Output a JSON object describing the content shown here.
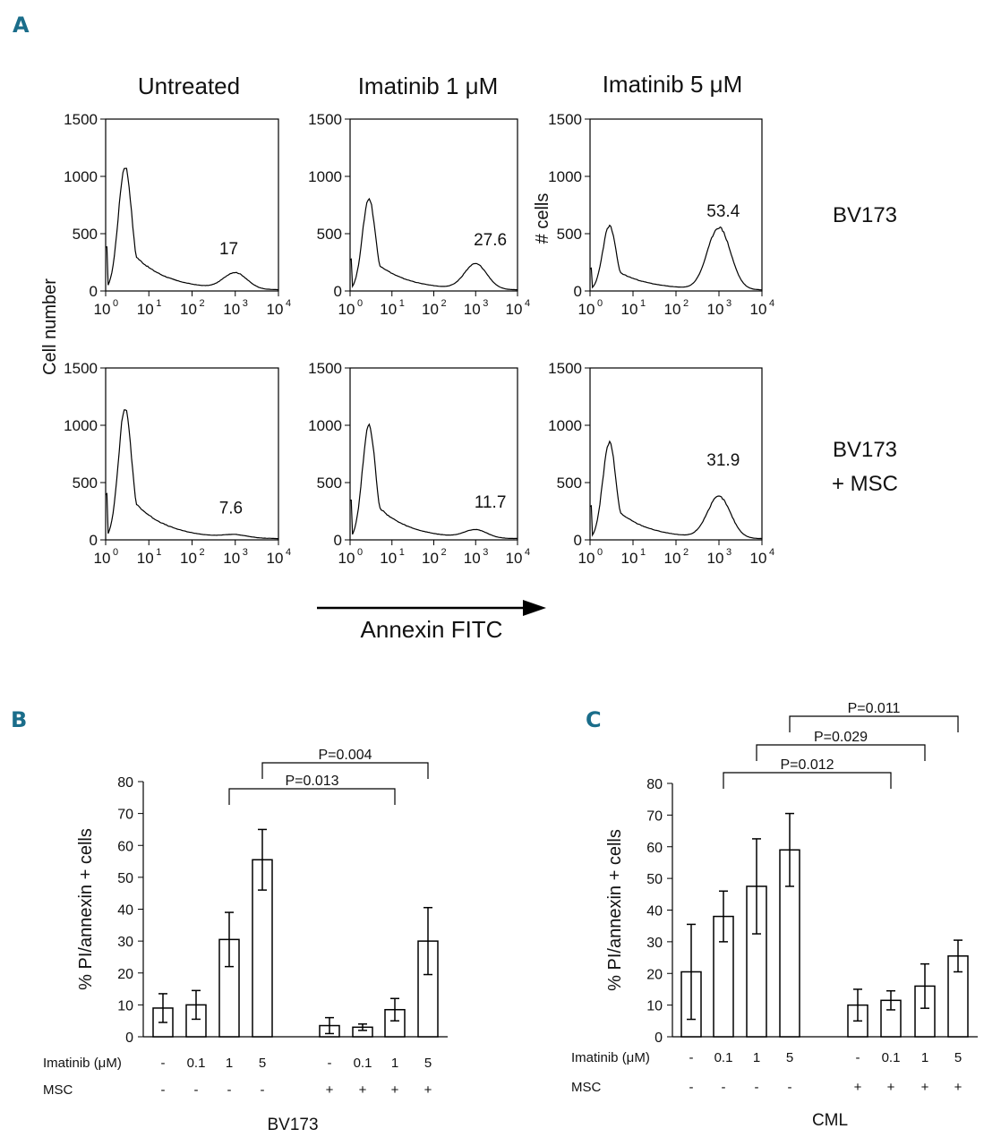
{
  "panel_labels": {
    "a": "A",
    "b": "B",
    "c": "C"
  },
  "flow": {
    "columns": [
      "Untreated",
      "Imatinib 1 μM",
      "Imatinib 5 μM"
    ],
    "rows": [
      "BV173",
      "BV173\n+ MSC"
    ],
    "row_label_lines": [
      [
        "BV173"
      ],
      [
        "BV173",
        "+ MSC"
      ]
    ],
    "y_label": "Cell number",
    "y_label_alt": "# cells",
    "x_label": "Annexin FITC",
    "y_ticks": [
      "0",
      "500",
      "1000",
      "1500"
    ],
    "x_ticks": [
      "10",
      "10",
      "10",
      "10",
      "10"
    ],
    "x_tick_exponents": [
      "0",
      "1",
      "2",
      "3",
      "4"
    ],
    "percentages": [
      [
        "17",
        "27.6",
        "53.4"
      ],
      [
        "7.6",
        "11.7",
        "31.9"
      ]
    ]
  },
  "chart_data": [
    {
      "type": "bar",
      "title": "BV173",
      "xlabel": "BV173",
      "ylabel": "% PI/annexin + cells",
      "ylim": [
        0,
        80
      ],
      "y_ticks": [
        "0",
        "10",
        "20",
        "30",
        "40",
        "50",
        "60",
        "70",
        "80"
      ],
      "condition_labels": {
        "imatinib": "Imatinib (μM)",
        "msc": "MSC"
      },
      "categories": [
        "-",
        "0.1",
        "1",
        "5",
        "-",
        "0.1",
        "1",
        "5"
      ],
      "msc": [
        "-",
        "-",
        "-",
        "-",
        "+",
        "+",
        "+",
        "+"
      ],
      "values": [
        9,
        10,
        30.5,
        55.5,
        3.5,
        3,
        8.5,
        30
      ],
      "errors": [
        4.5,
        4.5,
        8.5,
        9.5,
        2.5,
        1,
        3.5,
        10.5
      ],
      "p_values": [
        {
          "text": "P=0.013",
          "from": 2,
          "to": 6
        },
        {
          "text": "P=0.004",
          "from": 3,
          "to": 7
        }
      ]
    },
    {
      "type": "bar",
      "title": "CML",
      "xlabel": "CML",
      "ylabel": "% PI/annexin + cells",
      "ylim": [
        0,
        80
      ],
      "y_ticks": [
        "0",
        "10",
        "20",
        "30",
        "40",
        "50",
        "60",
        "70",
        "80"
      ],
      "condition_labels": {
        "imatinib": "Imatinib (μM)",
        "msc": "MSC"
      },
      "categories": [
        "-",
        "0.1",
        "1",
        "5",
        "-",
        "0.1",
        "1",
        "5"
      ],
      "msc": [
        "-",
        "-",
        "-",
        "-",
        "+",
        "+",
        "+",
        "+"
      ],
      "values": [
        20.5,
        38,
        47.5,
        59,
        10,
        11.5,
        16,
        25.5
      ],
      "errors": [
        15,
        8,
        15,
        11.5,
        5,
        3,
        7,
        5
      ],
      "p_values": [
        {
          "text": "P=0.012",
          "from": 1,
          "to": 5
        },
        {
          "text": "P=0.029",
          "from": 2,
          "to": 6
        },
        {
          "text": "P=0.011",
          "from": 3,
          "to": 7
        }
      ]
    }
  ]
}
